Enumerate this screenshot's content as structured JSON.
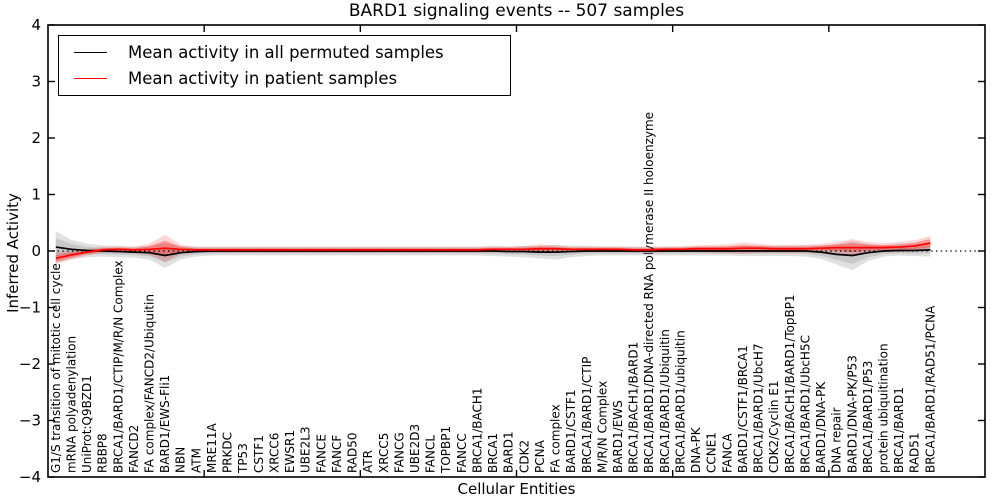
{
  "figure": {
    "title": "BARD1 signaling events -- 507 samples"
  },
  "legend": {
    "entries": [
      {
        "label": "Mean activity in all permuted samples",
        "color": "#000000"
      },
      {
        "label": "Mean activity in patient samples",
        "color": "#ff0000"
      }
    ]
  },
  "axes": {
    "ylabel": "Inferred Activity",
    "xlabel": "Cellular Entities",
    "ytick_labels": [
      "4",
      "3",
      "2",
      "1",
      "0",
      "−1",
      "−2",
      "−3",
      "−4"
    ]
  },
  "chart_data": {
    "type": "line",
    "title": "BARD1 signaling events -- 507 samples",
    "xlabel": "Cellular Entities",
    "ylabel": "Inferred Activity",
    "ylim": [
      -4,
      4
    ],
    "xlim": [
      0,
      60
    ],
    "yticks": [
      4,
      3,
      2,
      1,
      0,
      -1,
      -2,
      -3,
      -4
    ],
    "xticks": [
      10,
      20,
      30,
      40,
      50
    ],
    "grid": false,
    "legend_position": "upper left",
    "zero_line": {
      "y": 0,
      "style": "dotted",
      "color": "#000000"
    },
    "categories": [
      "G1/S transition of mitotic cell cycle",
      "mRNA polyadenylation",
      "UniProt:Q9BZD1",
      "RBBP8",
      "BRCA1/BARD1/CTIP/M/R/N Complex",
      "FANCD2",
      "FA complex/FANCD2/Ubiquitin",
      "BARD1/EWS-Fli1",
      "NBN",
      "ATM",
      "MRE11A",
      "PRKDC",
      "TP53",
      "CSTF1",
      "XRCC6",
      "EWSR1",
      "UBE2L3",
      "FANCE",
      "FANCF",
      "RAD50",
      "ATR",
      "XRCC5",
      "FANCG",
      "UBE2D3",
      "FANCL",
      "TOPBP1",
      "FANCC",
      "BRCA1/BACH1",
      "BRCA1",
      "BARD1",
      "CDK2",
      "PCNA",
      "FA complex",
      "BARD1/CSTF1",
      "BRCA1/BARD1/CTIP",
      "M/R/N Complex",
      "BARD1/EWS",
      "BRCA1/BACH1/BARD1",
      "BRCA1/BARD1/DNA-directed RNA polymerase II holoenzyme",
      "BRCA1/BARD1/Ubiquitin",
      "BRCA1/BARD1/ubiquitin",
      "DNA-PK",
      "CCNE1",
      "FANCA",
      "BARD1/CSTF1/BRCA1",
      "BRCA1/BARD1/UbcH7",
      "CDK2/Cyclin E1",
      "BRCA1/BACH1/BARD1/TopBP1",
      "BRCA1/BARD1/UbcH5C",
      "BARD1/DNA-PK",
      "DNA repair",
      "BARD1/DNA-PK/P53",
      "BRCA1/BARD1/P53",
      "protein ubiquitination",
      "BRCA1/BARD1",
      "RAD51",
      "BRCA1/BARD1/RAD51/PCNA"
    ],
    "series": [
      {
        "name": "Mean activity in all permuted samples",
        "color": "#000000",
        "band_color": "#999999",
        "values": [
          0.07,
          0.03,
          0.01,
          0.0,
          -0.01,
          -0.02,
          -0.03,
          -0.08,
          -0.03,
          -0.01,
          0.0,
          0.0,
          0.0,
          0.0,
          0.0,
          0.0,
          0.0,
          0.0,
          0.0,
          0.0,
          0.0,
          0.0,
          0.0,
          0.0,
          0.0,
          0.0,
          0.0,
          0.0,
          0.0,
          -0.01,
          -0.01,
          -0.02,
          -0.02,
          -0.01,
          0.0,
          0.0,
          0.0,
          0.0,
          0.0,
          0.0,
          0.0,
          0.0,
          0.0,
          0.0,
          0.0,
          0.0,
          0.0,
          0.0,
          0.0,
          -0.02,
          -0.06,
          -0.08,
          -0.03,
          0.0,
          0.01,
          0.01,
          0.02
        ],
        "std": [
          0.28,
          0.17,
          0.12,
          0.1,
          0.1,
          0.1,
          0.12,
          0.22,
          0.12,
          0.09,
          0.08,
          0.08,
          0.08,
          0.08,
          0.08,
          0.08,
          0.08,
          0.08,
          0.08,
          0.08,
          0.08,
          0.08,
          0.08,
          0.08,
          0.08,
          0.08,
          0.08,
          0.08,
          0.09,
          0.09,
          0.1,
          0.11,
          0.13,
          0.1,
          0.09,
          0.08,
          0.08,
          0.08,
          0.08,
          0.08,
          0.08,
          0.08,
          0.08,
          0.08,
          0.09,
          0.09,
          0.09,
          0.09,
          0.1,
          0.12,
          0.18,
          0.26,
          0.15,
          0.1,
          0.09,
          0.1,
          0.12
        ]
      },
      {
        "name": "Mean activity in patient samples",
        "color": "#ff0000",
        "band_color": "#ff0000",
        "values": [
          -0.13,
          -0.07,
          -0.02,
          0.02,
          0.03,
          0.02,
          0.03,
          0.05,
          0.03,
          0.02,
          0.02,
          0.02,
          0.02,
          0.02,
          0.02,
          0.02,
          0.02,
          0.02,
          0.02,
          0.02,
          0.02,
          0.02,
          0.02,
          0.02,
          0.02,
          0.02,
          0.02,
          0.02,
          0.03,
          0.03,
          0.03,
          0.04,
          0.04,
          0.03,
          0.03,
          0.03,
          0.03,
          0.02,
          0.02,
          0.03,
          0.03,
          0.04,
          0.04,
          0.04,
          0.05,
          0.05,
          0.04,
          0.04,
          0.04,
          0.05,
          0.06,
          0.06,
          0.06,
          0.06,
          0.07,
          0.09,
          0.14
        ],
        "std": [
          0.1,
          0.08,
          0.06,
          0.05,
          0.05,
          0.05,
          0.1,
          0.24,
          0.08,
          0.05,
          0.05,
          0.05,
          0.05,
          0.05,
          0.05,
          0.05,
          0.05,
          0.05,
          0.05,
          0.05,
          0.05,
          0.05,
          0.05,
          0.05,
          0.05,
          0.05,
          0.05,
          0.05,
          0.05,
          0.05,
          0.06,
          0.08,
          0.06,
          0.05,
          0.05,
          0.05,
          0.05,
          0.05,
          0.05,
          0.05,
          0.05,
          0.06,
          0.07,
          0.08,
          0.1,
          0.08,
          0.07,
          0.07,
          0.07,
          0.08,
          0.1,
          0.15,
          0.1,
          0.08,
          0.09,
          0.1,
          0.13
        ]
      }
    ]
  }
}
